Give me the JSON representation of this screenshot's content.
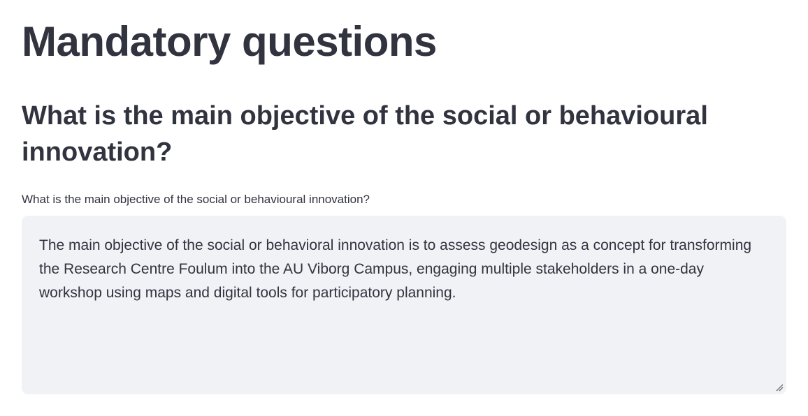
{
  "page": {
    "title": "Mandatory questions"
  },
  "question": {
    "heading": "What is the main objective of the social or behavioural innovation?",
    "label": "What is the main objective of the social or behavioural innovation?",
    "answer": "The main objective of the social or behavioral innovation is to assess geodesign as a concept for transforming the Research Centre Foulum into the AU Viborg Campus, engaging multiple stakeholders in a one-day workshop using maps and digital tools for participatory planning."
  },
  "icons": {
    "resize": "resize-handle-icon"
  },
  "colors": {
    "text": "#31333f",
    "textarea_bg": "#f0f2f6",
    "background": "#ffffff"
  }
}
